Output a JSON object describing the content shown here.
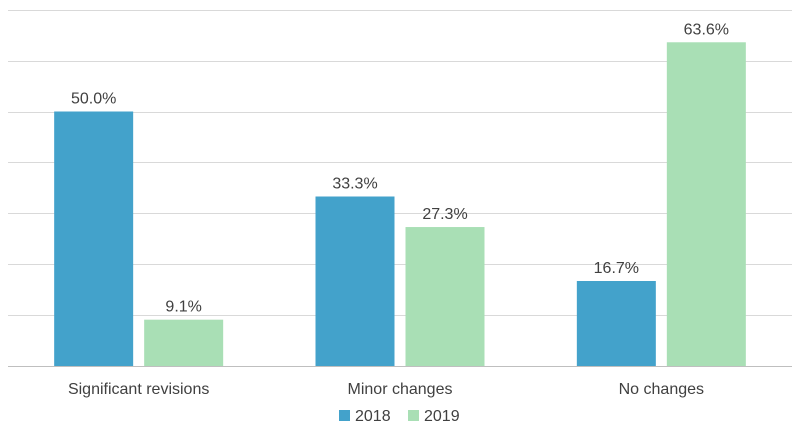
{
  "chart_data": {
    "type": "bar",
    "title": "",
    "xlabel": "",
    "ylabel": "",
    "ylim": [
      0,
      70
    ],
    "grid": true,
    "legend_position": "bottom-center",
    "categories": [
      "Significant revisions",
      "Minor changes",
      "No changes"
    ],
    "series": [
      {
        "name": "2018",
        "color": "#43A2CB",
        "values": [
          50.0,
          33.3,
          16.7
        ],
        "labels": [
          "50.0%",
          "33.3%",
          "16.7%"
        ]
      },
      {
        "name": "2019",
        "color": "#A9DFB5",
        "values": [
          9.1,
          27.3,
          63.6
        ],
        "labels": [
          "9.1%",
          "27.3%",
          "63.6%"
        ]
      }
    ]
  }
}
